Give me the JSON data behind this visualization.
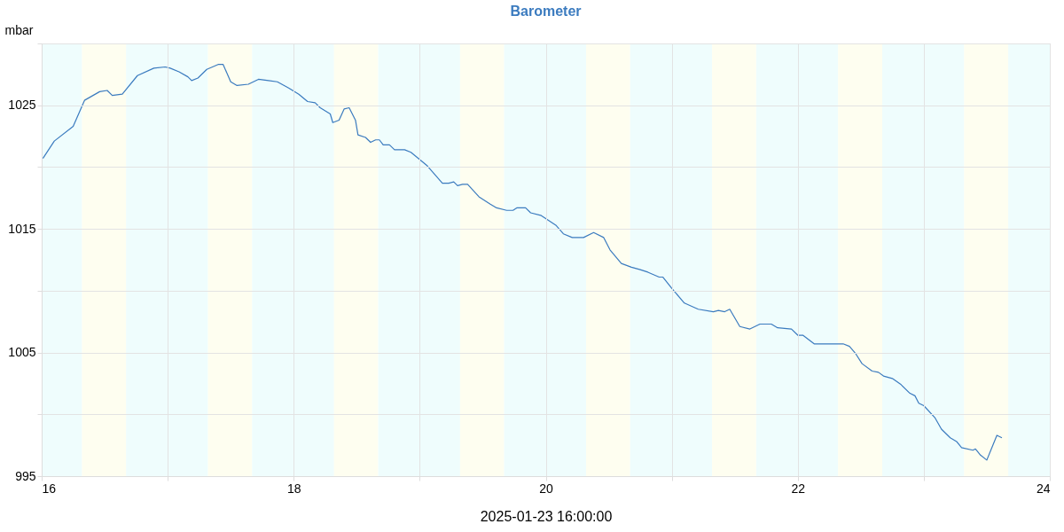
{
  "chart_data": {
    "type": "line",
    "title": "Barometer",
    "xlabel": "2025-01-23 16:00:00",
    "ylabel": "mbar",
    "x": [
      16.01,
      16.1,
      16.25,
      16.34,
      16.46,
      16.52,
      16.56,
      16.64,
      16.76,
      16.89,
      16.98,
      17.02,
      17.09,
      17.16,
      17.19,
      17.24,
      17.31,
      17.4,
      17.44,
      17.5,
      17.55,
      17.64,
      17.72,
      17.8,
      17.87,
      17.96,
      18.04,
      18.11,
      18.17,
      18.21,
      18.29,
      18.31,
      18.36,
      18.4,
      18.44,
      18.49,
      18.51,
      18.57,
      18.61,
      18.65,
      18.68,
      18.71,
      18.76,
      18.8,
      18.88,
      18.93,
      18.99,
      19.06,
      19.18,
      19.23,
      19.27,
      19.3,
      19.34,
      19.38,
      19.47,
      19.56,
      19.61,
      19.69,
      19.74,
      19.77,
      19.84,
      19.88,
      19.96,
      20.08,
      20.14,
      20.21,
      20.3,
      20.38,
      20.46,
      20.51,
      20.6,
      20.68,
      20.75,
      20.81,
      20.9,
      20.93,
      21.0,
      21.1,
      21.21,
      21.33,
      21.37,
      21.42,
      21.46,
      21.54,
      21.62,
      21.7,
      21.79,
      21.84,
      21.95,
      22.0,
      22.04,
      22.13,
      22.2,
      22.24,
      22.32,
      22.36,
      22.41,
      22.46,
      22.51,
      22.59,
      22.64,
      22.68,
      22.75,
      22.82,
      22.89,
      22.93,
      22.96,
      23.0,
      23.09,
      23.14,
      23.21,
      23.26,
      23.3,
      23.39,
      23.41,
      23.45,
      23.5,
      23.58,
      23.62
    ],
    "series": [
      {
        "color": "#3b7bbf",
        "values": [
          1020.7,
          1022.1,
          1023.3,
          1025.4,
          1026.1,
          1026.2,
          1025.8,
          1025.9,
          1027.4,
          1028.0,
          1028.1,
          1028.0,
          1027.7,
          1027.3,
          1027.0,
          1027.2,
          1027.9,
          1028.3,
          1028.3,
          1026.9,
          1026.6,
          1026.7,
          1027.1,
          1027.0,
          1026.9,
          1026.4,
          1025.9,
          1025.3,
          1025.2,
          1024.8,
          1024.3,
          1023.6,
          1023.8,
          1024.7,
          1024.8,
          1023.8,
          1022.6,
          1022.4,
          1022.0,
          1022.2,
          1022.2,
          1021.8,
          1021.8,
          1021.4,
          1021.4,
          1021.2,
          1020.7,
          1020.1,
          1018.7,
          1018.7,
          1018.8,
          1018.5,
          1018.6,
          1018.6,
          1017.6,
          1017.0,
          1016.7,
          1016.5,
          1016.5,
          1016.7,
          1016.7,
          1016.3,
          1016.1,
          1015.3,
          1014.6,
          1014.3,
          1014.3,
          1014.7,
          1014.3,
          1013.3,
          1012.2,
          1011.9,
          1011.7,
          1011.5,
          1011.1,
          1011.1,
          1010.2,
          1009.0,
          1008.5,
          1008.3,
          1008.4,
          1008.3,
          1008.5,
          1007.1,
          1006.9,
          1007.3,
          1007.3,
          1007.0,
          1006.9,
          1006.4,
          1006.4,
          1005.7,
          1005.7,
          1005.7,
          1005.7,
          1005.7,
          1005.5,
          1004.9,
          1004.1,
          1003.5,
          1003.4,
          1003.1,
          1002.9,
          1002.4,
          1001.7,
          1001.5,
          1000.9,
          1000.7,
          999.7,
          998.8,
          998.1,
          997.8,
          997.3,
          997.1,
          997.2,
          996.7,
          996.3,
          998.3,
          998.1
        ]
      }
    ],
    "xlim": [
      16,
      24
    ],
    "ylim": [
      995,
      1030
    ],
    "xticks": [
      16,
      {
        "value": 17,
        "label": null
      },
      18,
      {
        "value": 19,
        "label": null
      },
      20,
      {
        "value": 21,
        "label": null
      },
      22,
      {
        "value": 23,
        "label": null
      },
      24
    ],
    "yticks": [
      995,
      {
        "value": 1000,
        "label": null
      },
      1005,
      {
        "value": 1010,
        "label": null
      },
      1015,
      {
        "value": 1020,
        "label": null
      },
      1025,
      {
        "value": 1030,
        "label": null
      }
    ],
    "grid": true,
    "marker": "none",
    "line_style": "solid",
    "bands": [
      {
        "axis": "x",
        "from": 16,
        "to": 16.32,
        "color": "#effdfd"
      },
      {
        "axis": "x",
        "from": 16.32,
        "to": 16.67,
        "color": "#fefef0"
      },
      {
        "axis": "x",
        "from": 16.67,
        "to": 17.32,
        "color": "#effdfd"
      },
      {
        "axis": "x",
        "from": 17.32,
        "to": 17.67,
        "color": "#fefef0"
      },
      {
        "axis": "x",
        "from": 17.67,
        "to": 18.32,
        "color": "#effdfd"
      },
      {
        "axis": "x",
        "from": 18.32,
        "to": 18.67,
        "color": "#fefef0"
      },
      {
        "axis": "x",
        "from": 18.67,
        "to": 19.32,
        "color": "#effdfd"
      },
      {
        "axis": "x",
        "from": 19.32,
        "to": 19.67,
        "color": "#fefef0"
      },
      {
        "axis": "x",
        "from": 19.67,
        "to": 20.32,
        "color": "#effdfd"
      },
      {
        "axis": "x",
        "from": 20.32,
        "to": 20.67,
        "color": "#fefef0"
      },
      {
        "axis": "x",
        "from": 20.67,
        "to": 21.32,
        "color": "#effdfd"
      },
      {
        "axis": "x",
        "from": 21.32,
        "to": 21.67,
        "color": "#fefef0"
      },
      {
        "axis": "x",
        "from": 21.67,
        "to": 22.32,
        "color": "#effdfd"
      },
      {
        "axis": "x",
        "from": 22.32,
        "to": 22.67,
        "color": "#fefef0"
      },
      {
        "axis": "x",
        "from": 22.67,
        "to": 23.32,
        "color": "#effdfd"
      },
      {
        "axis": "x",
        "from": 23.32,
        "to": 23.67,
        "color": "#fefef0"
      },
      {
        "axis": "x",
        "from": 23.67,
        "to": 24,
        "color": "#effdfd"
      }
    ]
  }
}
